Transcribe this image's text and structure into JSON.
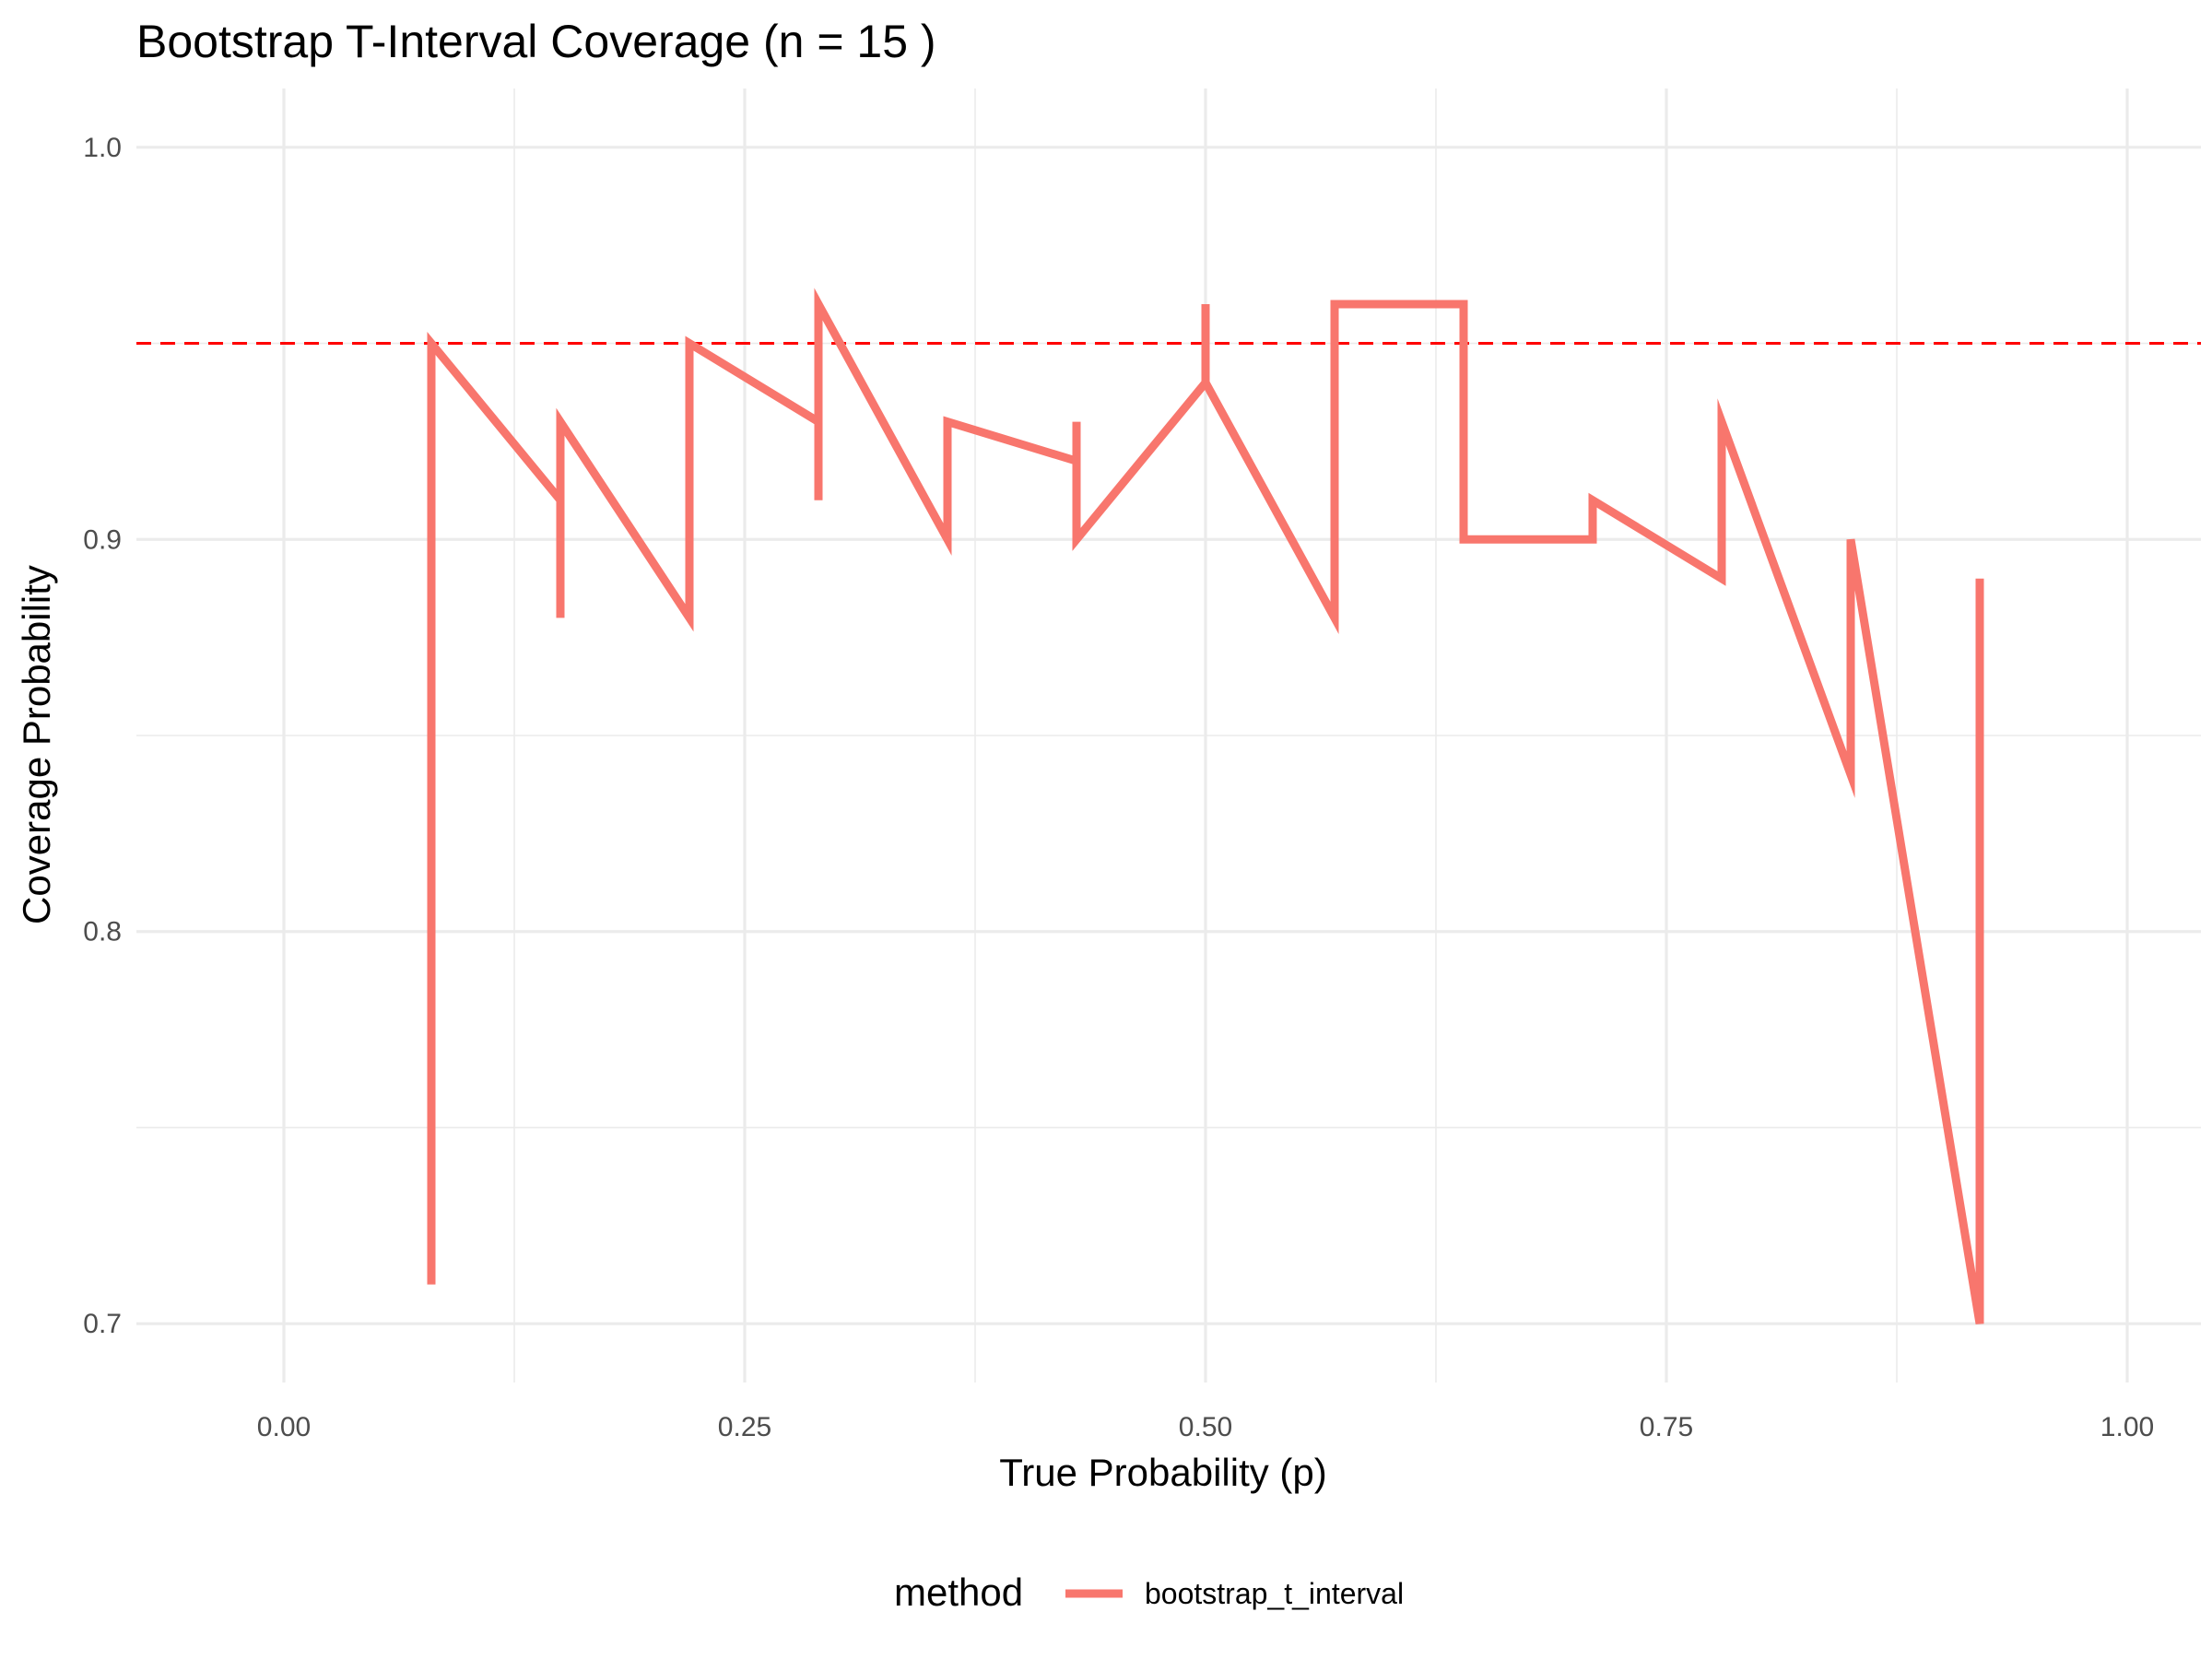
{
  "chart_data": {
    "type": "line",
    "title": "Bootstrap T-Interval Coverage (n =  15 )",
    "xlabel": "True Probability (p)",
    "ylabel": "Coverage Probability",
    "xlim": [
      -0.08,
      1.04
    ],
    "ylim": [
      0.685,
      1.015
    ],
    "x_ticks": [
      0.0,
      0.25,
      0.5,
      0.75,
      1.0
    ],
    "x_tick_labels": [
      "0.00",
      "0.25",
      "0.50",
      "0.75",
      "1.00"
    ],
    "x_minor_ticks": [
      0.125,
      0.375,
      0.625,
      0.875
    ],
    "y_ticks": [
      0.7,
      0.8,
      0.9,
      1.0
    ],
    "y_tick_labels": [
      "0.7",
      "0.8",
      "0.9",
      "1.0"
    ],
    "y_minor_ticks": [
      0.75,
      0.85,
      0.95
    ],
    "grid": true,
    "legend": {
      "title": "method",
      "position": "bottom"
    },
    "reference_line": {
      "y": 0.95,
      "style": "dashed",
      "color": "#ff0000"
    },
    "series": [
      {
        "name": "bootstrap_t_interval",
        "color": "#f8766d",
        "x": [
          0.08,
          0.08,
          0.15,
          0.15,
          0.15,
          0.22,
          0.22,
          0.29,
          0.29,
          0.29,
          0.36,
          0.36,
          0.43,
          0.43,
          0.43,
          0.5,
          0.5,
          0.5,
          0.57,
          0.57,
          0.64,
          0.64,
          0.71,
          0.71,
          0.78,
          0.78,
          0.85,
          0.85,
          0.92,
          0.92
        ],
        "y": [
          0.71,
          0.95,
          0.91,
          0.88,
          0.93,
          0.88,
          0.95,
          0.93,
          0.91,
          0.96,
          0.9,
          0.93,
          0.92,
          0.93,
          0.9,
          0.94,
          0.96,
          0.94,
          0.88,
          0.96,
          0.96,
          0.9,
          0.9,
          0.91,
          0.89,
          0.93,
          0.84,
          0.9,
          0.7,
          0.89
        ]
      }
    ]
  }
}
